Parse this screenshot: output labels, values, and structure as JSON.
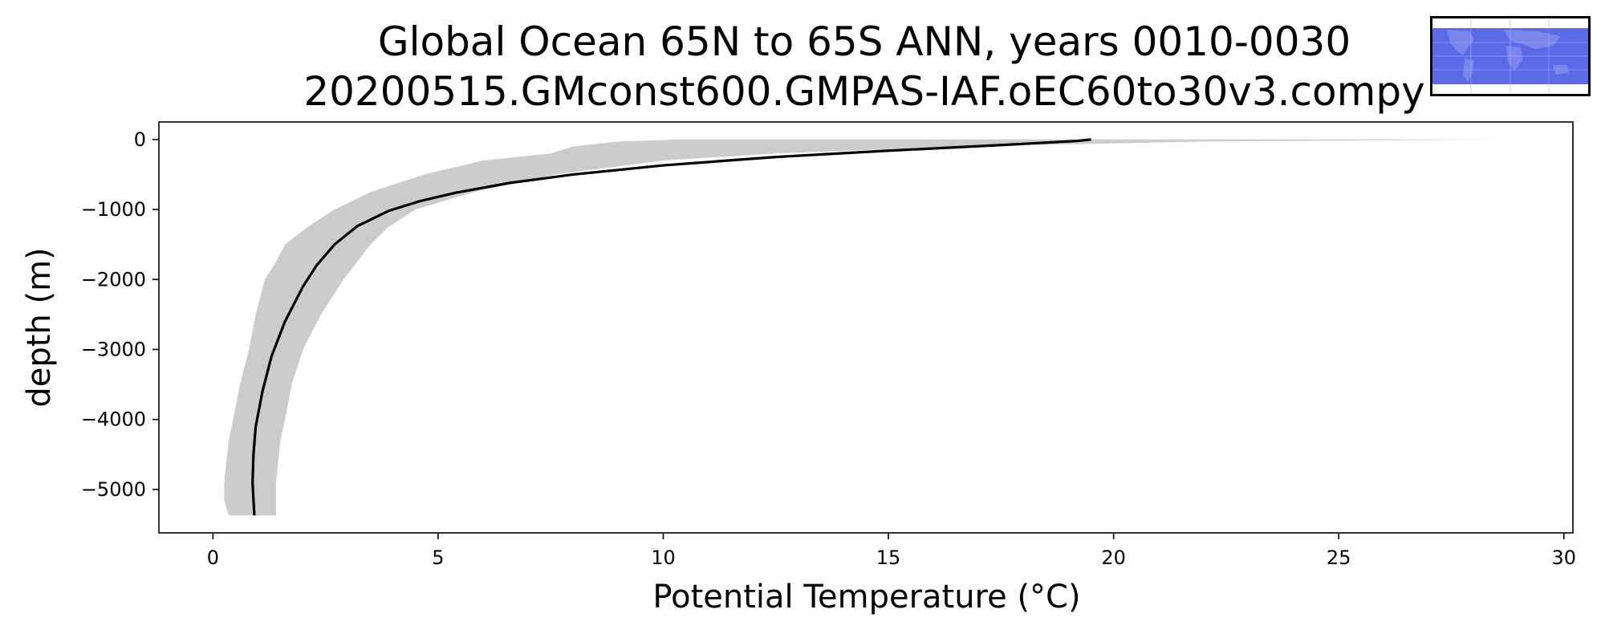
{
  "title": {
    "line1": "Global Ocean 65N to 65S ANN, years 0010-0030",
    "line2": "20200515.GMconst600.GMPAS-IAF.oEC60to30v3.compy"
  },
  "colors": {
    "mean_line": "#000000",
    "spread_fill": "#cccccc",
    "axes": "#000000",
    "map_ocean": "#5d6ae8",
    "map_land": "#7a86ec"
  },
  "inset": {
    "icon": "world-map-icon"
  },
  "chart_data": {
    "type": "line",
    "title": "Global Ocean 65N to 65S ANN, years 0010-0030\n20200515.GMconst600.GMPAS-IAF.oEC60to30v3.compy",
    "xlabel": "Potential Temperature (°C)",
    "ylabel": "depth (m)",
    "xlim": [
      -1.2,
      30.2
    ],
    "ylim": [
      -5620,
      250
    ],
    "xticks": [
      0,
      5,
      10,
      15,
      20,
      25,
      30
    ],
    "xtick_labels": [
      "0",
      "5",
      "10",
      "15",
      "20",
      "25",
      "30"
    ],
    "yticks": [
      0,
      -1000,
      -2000,
      -3000,
      -4000,
      -5000
    ],
    "ytick_labels": [
      "0",
      "−1000",
      "−2000",
      "−3000",
      "−4000",
      "−5000"
    ],
    "grid": false,
    "series": [
      {
        "kind": "line",
        "x": [
          19.5,
          19.2,
          17.5,
          15.0,
          12.5,
          10.0,
          8.0,
          6.6,
          5.4,
          4.6,
          3.9,
          3.2,
          2.7,
          2.3,
          2.0,
          1.6,
          1.3,
          1.1,
          0.95,
          0.9,
          0.88,
          0.9,
          0.92
        ],
        "y": [
          0,
          -20,
          -80,
          -160,
          -250,
          -370,
          -500,
          -620,
          -760,
          -880,
          -1020,
          -1240,
          -1500,
          -1800,
          -2100,
          -2600,
          -3100,
          -3600,
          -4100,
          -4500,
          -4900,
          -5150,
          -5370
        ]
      },
      {
        "kind": "band",
        "y": [
          0,
          -30,
          -100,
          -200,
          -300,
          -500,
          -750,
          -1000,
          -1250,
          -1500,
          -1750,
          -2000,
          -2500,
          -3000,
          -3500,
          -4000,
          -4300,
          -4600,
          -4900,
          -5150,
          -5370
        ],
        "lower": [
          10.4,
          9.0,
          8.0,
          7.5,
          6.0,
          4.7,
          3.5,
          2.7,
          2.1,
          1.6,
          1.4,
          1.15,
          0.95,
          0.8,
          0.6,
          0.45,
          0.35,
          0.3,
          0.25,
          0.25,
          0.35
        ],
        "upper": [
          28.6,
          22.0,
          16.5,
          12.5,
          10.0,
          7.6,
          5.8,
          4.5,
          3.9,
          3.5,
          3.2,
          2.9,
          2.4,
          2.0,
          1.75,
          1.6,
          1.5,
          1.45,
          1.4,
          1.4,
          1.4
        ]
      }
    ]
  }
}
